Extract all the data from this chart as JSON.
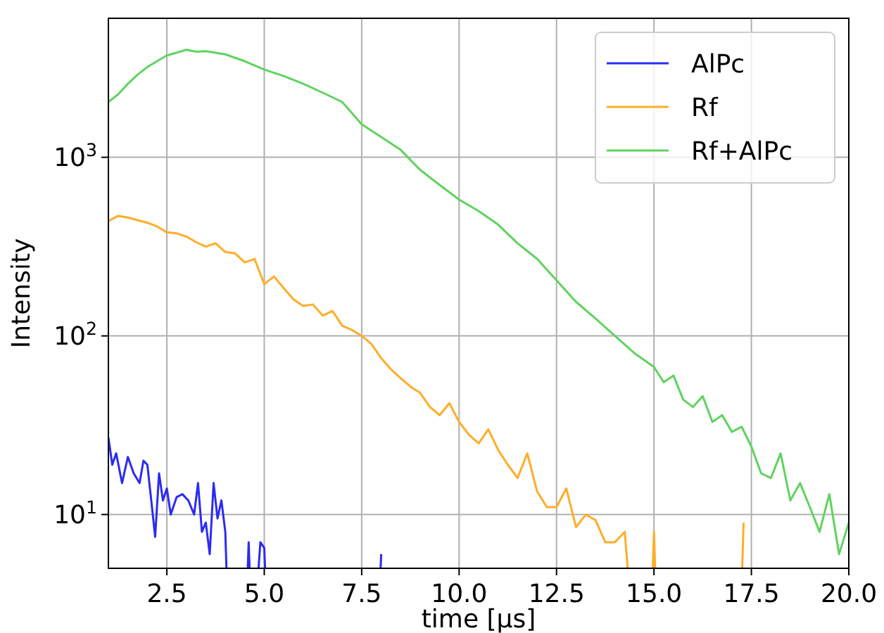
{
  "chart_data": {
    "type": "line",
    "xlabel": "time [μs]",
    "ylabel": "Intensity",
    "log": "y",
    "grid": true,
    "legend": "top right",
    "xlim": [
      1,
      20
    ],
    "xticks": [
      {
        "value": 2.5,
        "label": "2.5"
      },
      {
        "value": 5,
        "label": "5.0"
      },
      {
        "value": 7.5,
        "label": "7.5"
      },
      {
        "value": 10,
        "label": "10.0"
      },
      {
        "value": 12.5,
        "label": "12.5"
      },
      {
        "value": 15,
        "label": "15.0"
      },
      {
        "value": 17.5,
        "label": "17.5"
      },
      {
        "value": 20,
        "label": "20.0"
      }
    ],
    "ylim": [
      5,
      6000
    ],
    "yticks": [
      {
        "value": 10,
        "label": "10$^{1}$"
      },
      {
        "value": 100,
        "label": "10$^{2}$"
      },
      {
        "value": 1000,
        "label": "10$^{3}$"
      }
    ],
    "series": [
      {
        "name": "AlPc",
        "color": "#2b2bf5",
        "x": [
          1,
          1.1,
          1.2,
          1.35,
          1.5,
          1.65,
          1.8,
          1.9,
          2,
          2.1,
          2.2,
          2.3,
          2.4,
          2.5,
          2.6,
          2.75,
          2.9,
          3.05,
          3.2,
          3.3,
          3.4,
          3.5,
          3.6,
          3.7,
          3.8,
          3.9,
          4,
          4.1,
          4.5,
          4.6,
          4.7,
          4.9,
          5,
          5.1,
          7.9,
          8
        ],
        "values": [
          27,
          19,
          22,
          15,
          21,
          17,
          15,
          20,
          19,
          12,
          7.5,
          17,
          12,
          14,
          10,
          12.5,
          13,
          12,
          10,
          15,
          8,
          9,
          6,
          15,
          9.5,
          12,
          8,
          null,
          null,
          7,
          null,
          7,
          6.5,
          null,
          null,
          6
        ]
      },
      {
        "name": "Rf",
        "color": "#ffad29",
        "x": [
          1,
          1.25,
          1.5,
          1.75,
          2,
          2.25,
          2.5,
          2.75,
          3,
          3.25,
          3.5,
          3.75,
          4,
          4.25,
          4.5,
          4.75,
          5,
          5.25,
          5.5,
          5.75,
          6,
          6.25,
          6.5,
          6.75,
          7,
          7.25,
          7.5,
          7.75,
          8,
          8.25,
          8.5,
          8.75,
          9,
          9.25,
          9.5,
          9.75,
          10,
          10.25,
          10.5,
          10.75,
          11,
          11.25,
          11.5,
          11.75,
          12,
          12.25,
          12.5,
          12.75,
          13,
          13.25,
          13.5,
          13.75,
          14,
          14.25,
          14.5,
          14.9,
          15,
          15.1,
          17.2,
          17.3
        ],
        "values": [
          440,
          470,
          460,
          445,
          430,
          410,
          380,
          375,
          360,
          335,
          316,
          330,
          295,
          290,
          258,
          270,
          195,
          215,
          185,
          160,
          147,
          150,
          130,
          138,
          114,
          108,
          100,
          90,
          75,
          65,
          58,
          52,
          48,
          40,
          36,
          42,
          33,
          28,
          25,
          30,
          23,
          19,
          16,
          22,
          13.5,
          11,
          11,
          14,
          8.5,
          10,
          9.3,
          7,
          7,
          8,
          null,
          null,
          8,
          null,
          null,
          9
        ]
      },
      {
        "name": "Rf+AlPc",
        "color": "#5fd35f",
        "x": [
          1,
          1.25,
          1.5,
          1.75,
          2,
          2.25,
          2.5,
          2.75,
          3,
          3.25,
          3.5,
          3.75,
          4,
          4.5,
          5,
          5.5,
          6,
          6.5,
          7,
          7.5,
          8,
          8.5,
          9,
          9.5,
          10,
          10.5,
          11,
          11.5,
          12,
          12.5,
          13,
          13.5,
          14,
          14.5,
          15,
          15.25,
          15.5,
          15.75,
          16,
          16.25,
          16.5,
          16.75,
          17,
          17.25,
          17.5,
          17.75,
          18,
          18.25,
          18.5,
          18.75,
          19,
          19.25,
          19.5,
          19.75,
          20
        ],
        "values": [
          2040,
          2250,
          2580,
          2900,
          3200,
          3450,
          3720,
          3850,
          4000,
          3900,
          3930,
          3850,
          3770,
          3450,
          3100,
          2850,
          2580,
          2300,
          2040,
          1530,
          1300,
          1100,
          850,
          700,
          580,
          500,
          420,
          330,
          270,
          205,
          155,
          125,
          100,
          80,
          67,
          55,
          60,
          44,
          40,
          46,
          33,
          36,
          29,
          31,
          24,
          17,
          16,
          22,
          12,
          15,
          11,
          8,
          13,
          6,
          9
        ]
      }
    ]
  }
}
